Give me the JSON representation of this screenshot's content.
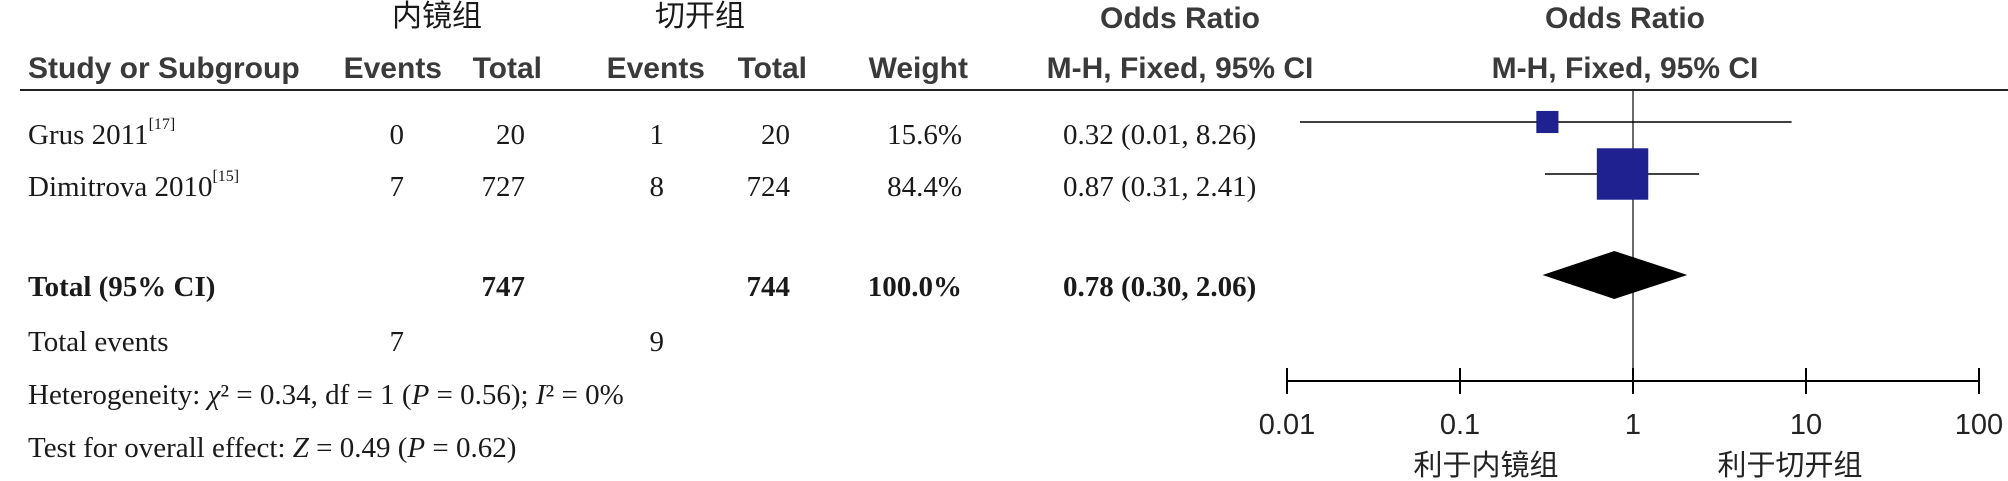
{
  "headers": {
    "group1": "内镜组",
    "group2": "切开组",
    "odds_ratio_left": "Odds Ratio",
    "odds_ratio_right": "Odds Ratio",
    "study_col": "Study or Subgroup",
    "events1": "Events",
    "total1": "Total",
    "events2": "Events",
    "total2": "Total",
    "weight": "Weight",
    "method_left": "M-H, Fixed, 95% CI",
    "method_right": "M-H, Fixed, 95% CI"
  },
  "studies": [
    {
      "name": "Grus 2011",
      "ref": "[17]",
      "events1": "0",
      "total1": "20",
      "events2": "1",
      "total2": "20",
      "weight": "15.6%",
      "ci_text": "0.32 (0.01, 8.26)"
    },
    {
      "name": "Dimitrova 2010",
      "ref": "[15]",
      "events1": "7",
      "total1": "727",
      "events2": "8",
      "total2": "724",
      "weight": "84.4%",
      "ci_text": "0.87 (0.31, 2.41)"
    }
  ],
  "total": {
    "label": "Total (95% CI)",
    "total1": "747",
    "total2": "744",
    "weight": "100.0%",
    "ci_text": "0.78 (0.30, 2.06)"
  },
  "total_events": {
    "label": "Total events",
    "events1": "7",
    "events2": "9"
  },
  "heterogeneity": {
    "prefix": "Heterogeneity: ",
    "chi": "χ",
    "chi_rest": "² = 0.34, df = 1 (",
    "p": "P",
    "p_rest": " = 0.56); ",
    "i": "I",
    "i_rest": "² = 0%"
  },
  "overall_effect": {
    "prefix": "Test for overall effect: ",
    "z": "Z",
    "z_rest": " = 0.49 (",
    "p": "P",
    "p_rest": " = 0.62)"
  },
  "chart_data": {
    "type": "forest",
    "scale": "log",
    "xlim": [
      0.01,
      100
    ],
    "ticks": [
      {
        "value": 0.01,
        "label": "0.01"
      },
      {
        "value": 0.1,
        "label": "0.1"
      },
      {
        "value": 1,
        "label": "1"
      },
      {
        "value": 10,
        "label": "10"
      },
      {
        "value": 100,
        "label": "100"
      }
    ],
    "favours_left": "利于内镜组",
    "favours_right": "利于切开组",
    "studies": [
      {
        "or": 0.32,
        "lo": 0.01,
        "hi": 8.26,
        "weight": 15.6
      },
      {
        "or": 0.87,
        "lo": 0.31,
        "hi": 2.41,
        "weight": 84.4
      }
    ],
    "pooled": {
      "or": 0.78,
      "lo": 0.3,
      "hi": 2.06
    },
    "colors": {
      "box": "#1f2190",
      "diamond": "#000000",
      "line": "#000000"
    }
  }
}
